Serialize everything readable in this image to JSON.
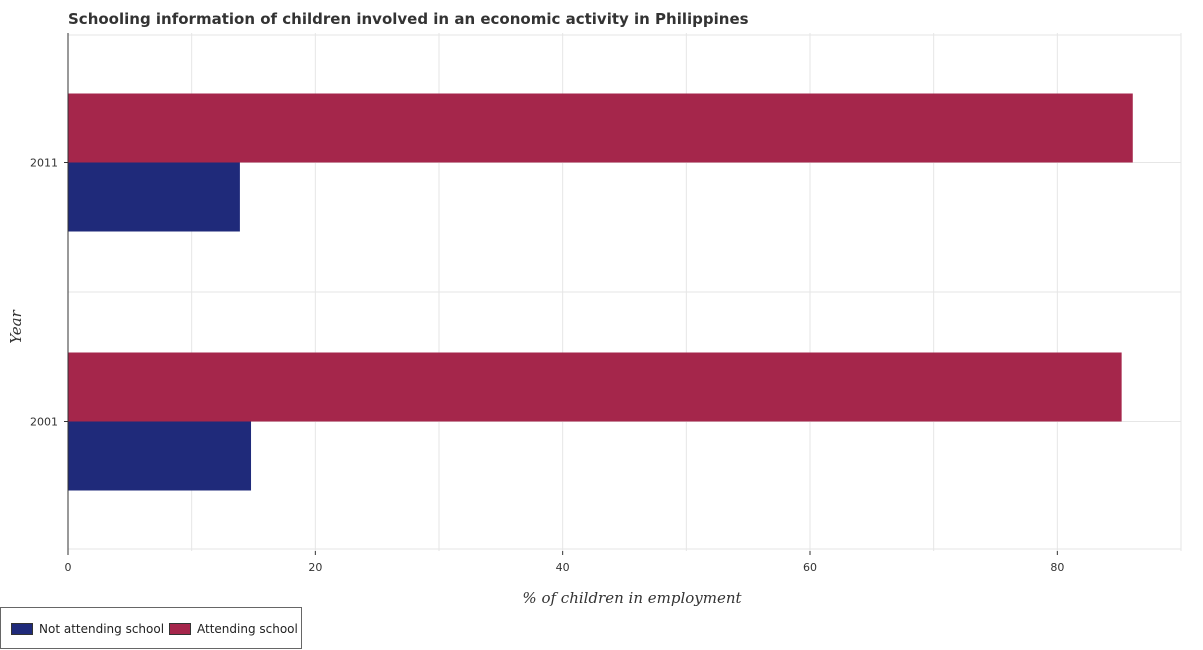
{
  "chart_data": {
    "type": "bar",
    "orientation": "horizontal",
    "title": "Schooling information of children involved in an economic activity in Philippines",
    "xlabel": "% of children in employment",
    "ylabel": "Year",
    "categories": [
      "2001",
      "2011"
    ],
    "xlim": [
      0,
      90
    ],
    "xticks": [
      0,
      20,
      40,
      60,
      80
    ],
    "xtick_labels": [
      "0",
      "20",
      "40",
      "60",
      "80"
    ],
    "grid": true,
    "legend_position": "bottom-left",
    "series": [
      {
        "name": "Not attending school",
        "color": "#1f2a7a",
        "values": [
          14.8,
          13.9
        ]
      },
      {
        "name": "Attending school",
        "color": "#a5264b",
        "values": [
          85.2,
          86.1
        ]
      }
    ]
  }
}
